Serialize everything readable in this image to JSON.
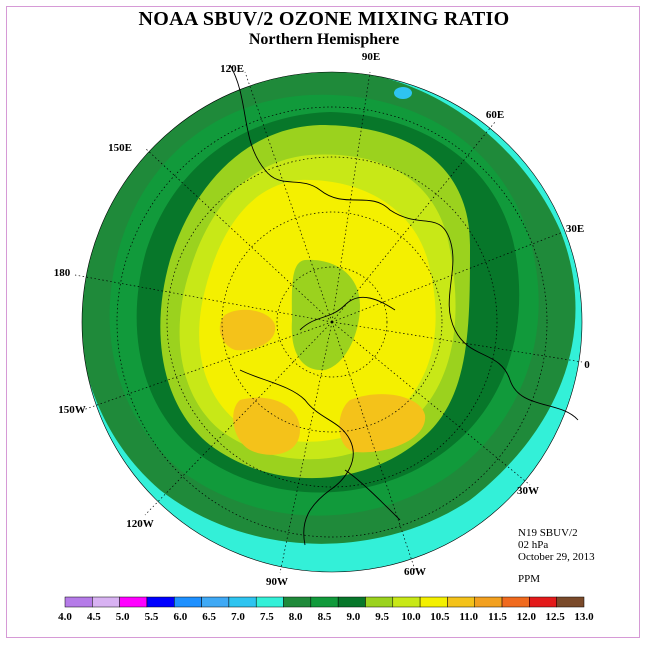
{
  "header": {
    "title": "NOAA SBUV/2 OZONE MIXING RATIO",
    "subtitle": "Northern Hemisphere"
  },
  "map": {
    "projection": "polar-stereographic-north",
    "longitude_labels": [
      "90E",
      "60E",
      "30E",
      "0",
      "30W",
      "60W",
      "90W",
      "120W",
      "150W",
      "180",
      "150E",
      "120E"
    ]
  },
  "info": {
    "instrument": "N19 SBUV/2",
    "pressure": "02 hPa",
    "date": "October 29, 2013",
    "units": "PPM"
  },
  "colorbar": {
    "labels": [
      "4.0",
      "4.5",
      "5.0",
      "5.5",
      "6.0",
      "6.5",
      "7.0",
      "7.5",
      "8.0",
      "8.5",
      "9.0",
      "9.5",
      "10.0",
      "10.5",
      "11.0",
      "11.5",
      "12.0",
      "12.5",
      "13.0"
    ],
    "colors": [
      "#b57be8",
      "#d8b2f2",
      "#ff00ff",
      "#0000ff",
      "#1e90ff",
      "#3fa9f5",
      "#2ec4f0",
      "#33f0d8",
      "#1f8a3a",
      "#119a3b",
      "#07772a",
      "#9bd21e",
      "#c8e817",
      "#f4f000",
      "#f4c21a",
      "#f2a01f",
      "#f06a1e",
      "#e31a1a",
      "#7a4a2a"
    ]
  },
  "field_colors": {
    "ring_outer": "#33f0d8",
    "ring_green1": "#1f8a3a",
    "ring_green2": "#119a3b",
    "ring_darkgreen": "#07772a",
    "ring_lightgreen": "#9bd21e",
    "ring_lime": "#c8e817",
    "core_yellow": "#f4f000",
    "max_orange": "#f4c21a"
  }
}
